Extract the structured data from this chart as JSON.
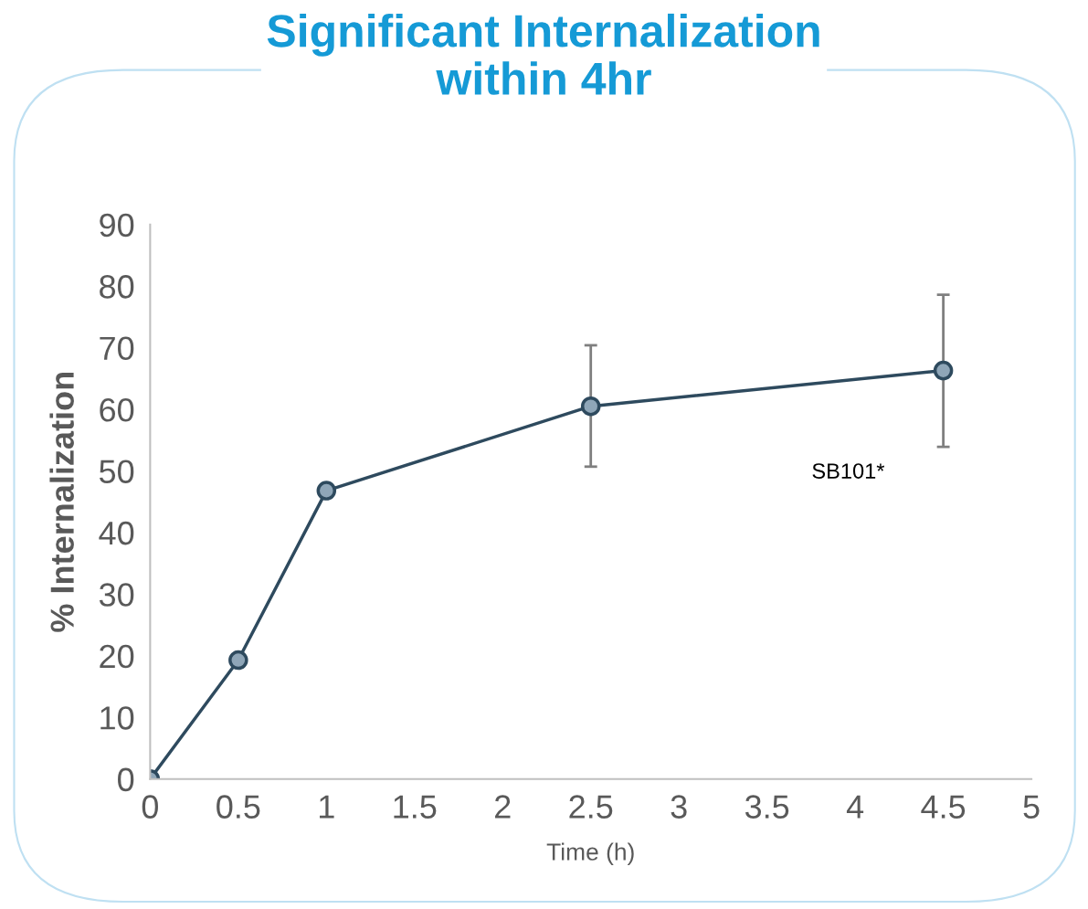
{
  "chart_data": {
    "type": "line",
    "title": "Significant Internalization\nwithin 4hr",
    "xlabel": "Time (h)",
    "ylabel": "% Internalization",
    "x": [
      0,
      0.5,
      1,
      2.5,
      4.5
    ],
    "series": [
      {
        "name": "SB101*",
        "color": "#2e4a5e",
        "values": [
          0,
          19.3,
          46.8,
          60.5,
          66.3
        ],
        "errors": [
          null,
          null,
          1,
          [
            50.7,
            70.4
          ],
          [
            53.9,
            78.6
          ]
        ]
      }
    ],
    "xlim": [
      0,
      5
    ],
    "xticks": [
      0,
      0.5,
      1,
      1.5,
      2,
      2.5,
      3,
      3.5,
      4,
      4.5,
      5
    ],
    "ylim": [
      0,
      90
    ],
    "yticks": [
      0,
      10,
      20,
      30,
      40,
      50,
      60,
      70,
      80,
      90
    ],
    "grid": false,
    "legend": false,
    "marker": "circle",
    "line_style": "solid"
  }
}
